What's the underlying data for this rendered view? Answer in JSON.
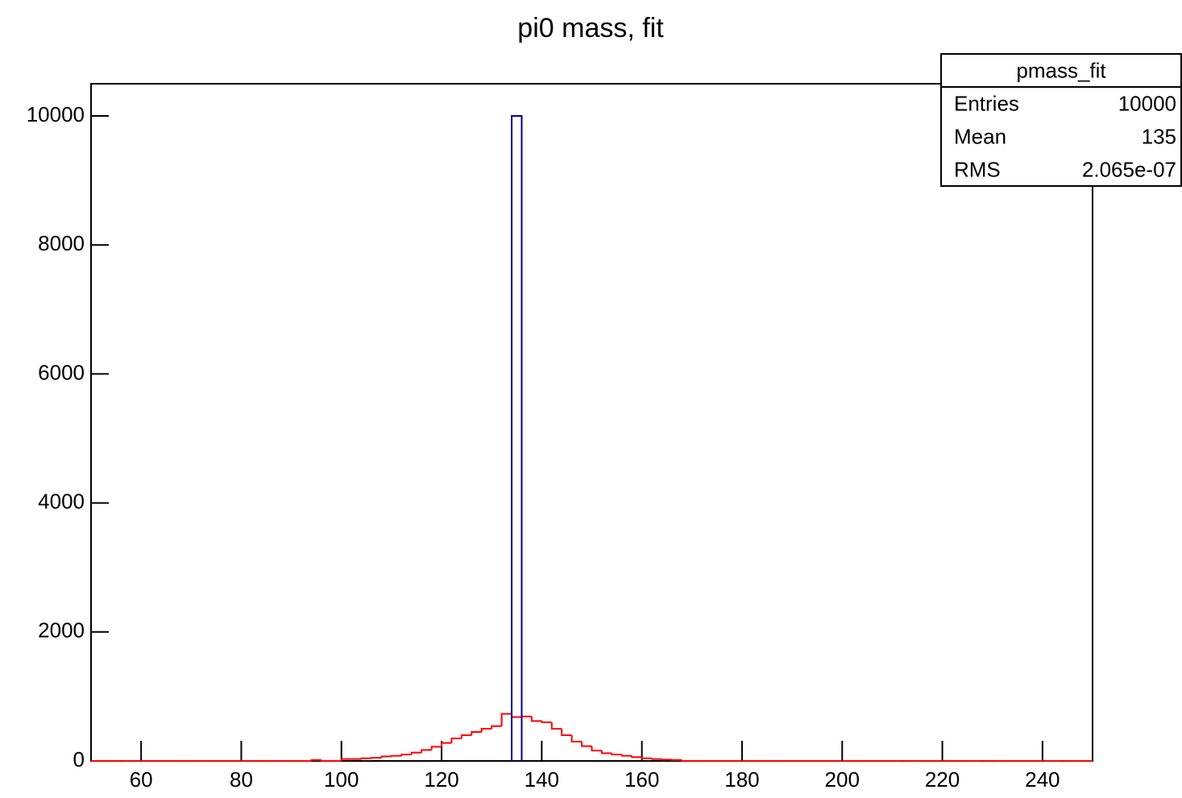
{
  "chart_data": {
    "type": "histogram",
    "title": "pi0 mass, fit",
    "xlim": [
      50,
      250
    ],
    "ylim": [
      0,
      10500
    ],
    "xticks": [
      60,
      80,
      100,
      120,
      140,
      160,
      180,
      200,
      220,
      240
    ],
    "yticks": [
      0,
      2000,
      4000,
      6000,
      8000,
      10000
    ],
    "series": [
      {
        "color": "#ff0000",
        "bins": [
          50,
          52,
          54,
          56,
          58,
          60,
          62,
          64,
          66,
          68,
          70,
          72,
          74,
          76,
          78,
          80,
          82,
          84,
          86,
          88,
          90,
          92,
          94,
          96,
          98,
          100,
          102,
          104,
          106,
          108,
          110,
          112,
          114,
          116,
          118,
          120,
          122,
          124,
          126,
          128,
          130,
          132,
          134,
          136,
          138,
          140,
          142,
          144,
          146,
          148,
          150,
          152,
          154,
          156,
          158,
          160,
          162,
          164,
          166,
          168,
          170,
          172,
          174,
          176,
          178,
          180,
          182,
          184,
          186,
          188,
          190,
          192,
          194,
          196,
          198,
          200,
          202,
          204,
          206,
          208,
          210,
          212,
          214,
          216,
          218,
          220,
          222,
          224,
          226,
          228,
          230,
          232,
          234,
          236,
          238,
          240,
          242,
          244,
          246,
          248,
          250
        ],
        "values": [
          0,
          0,
          0,
          0,
          0,
          0,
          0,
          0,
          0,
          0,
          0,
          0,
          0,
          0,
          0,
          0,
          0,
          0,
          0,
          0,
          0,
          0,
          15,
          0,
          0,
          30,
          30,
          40,
          50,
          70,
          80,
          100,
          130,
          170,
          220,
          280,
          350,
          400,
          450,
          500,
          540,
          730,
          680,
          690,
          620,
          600,
          500,
          400,
          300,
          230,
          160,
          120,
          100,
          80,
          60,
          40,
          30,
          20,
          15,
          0,
          0,
          0,
          0,
          0,
          0,
          0,
          0,
          0,
          0,
          0,
          0,
          0,
          0,
          0,
          0,
          0,
          0,
          0,
          0,
          0,
          0,
          0,
          0,
          0,
          0,
          0,
          0,
          0,
          0,
          0,
          0,
          0,
          0,
          0,
          0,
          0,
          0,
          0,
          0,
          0
        ]
      },
      {
        "color": "#000099",
        "bins": [
          134,
          136
        ],
        "values": [
          10000
        ]
      }
    ],
    "stats": {
      "title": "pmass_fit",
      "rows": [
        [
          "Entries",
          "10000"
        ],
        [
          "Mean",
          "135"
        ],
        [
          "RMS",
          "2.065e-07"
        ]
      ]
    }
  }
}
